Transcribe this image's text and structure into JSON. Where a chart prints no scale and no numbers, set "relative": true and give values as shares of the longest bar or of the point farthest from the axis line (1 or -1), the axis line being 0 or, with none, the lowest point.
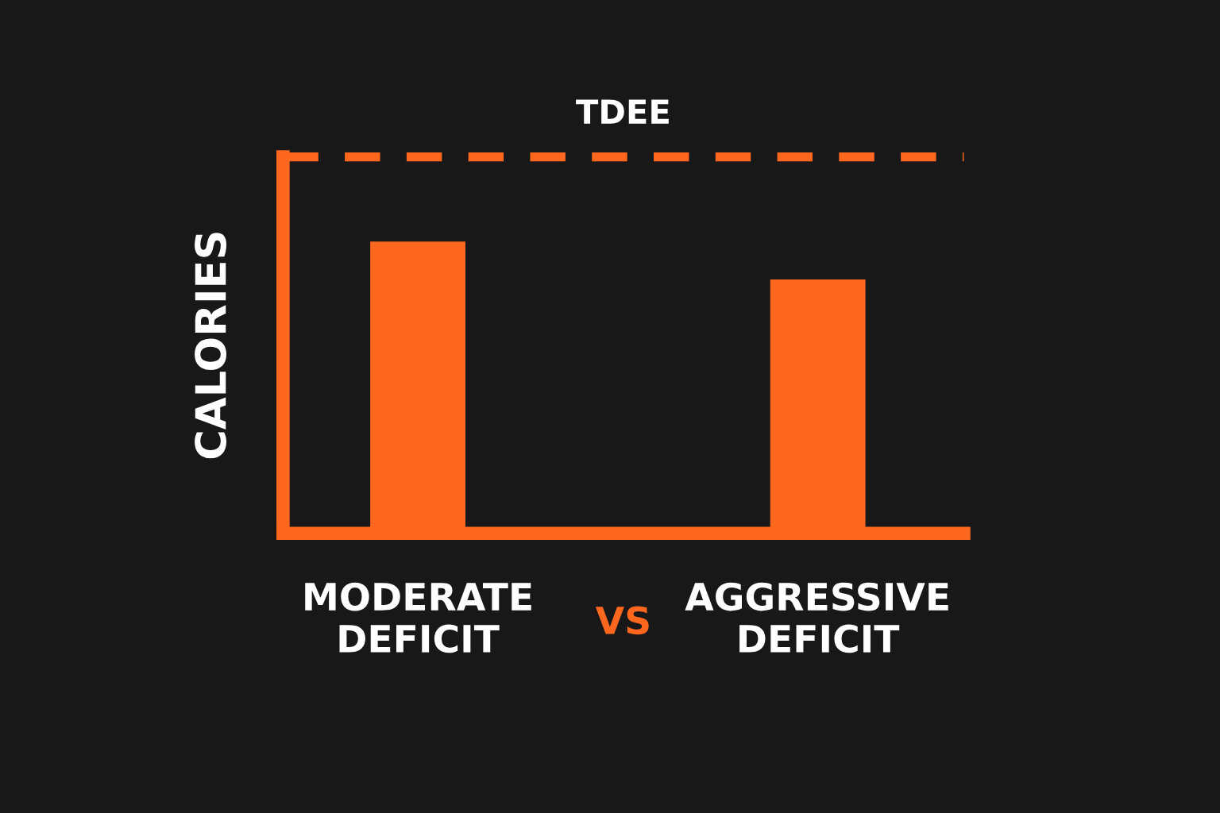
{
  "chart_data": {
    "type": "bar",
    "relative": true,
    "categories": [
      "MODERATE\nDEFICIT",
      "AGGRESSIVE\nDEFICIT"
    ],
    "values": [
      1,
      0.87
    ],
    "color": "#ff671f",
    "ylabel": "CALORIES",
    "ref_lines": [
      {
        "axis": "y",
        "value": 1.29,
        "label": "TDEE",
        "color": "#ff671f",
        "line_style": "dashed"
      }
    ],
    "annotations": [
      "VS"
    ],
    "grid": false,
    "legend": false
  }
}
